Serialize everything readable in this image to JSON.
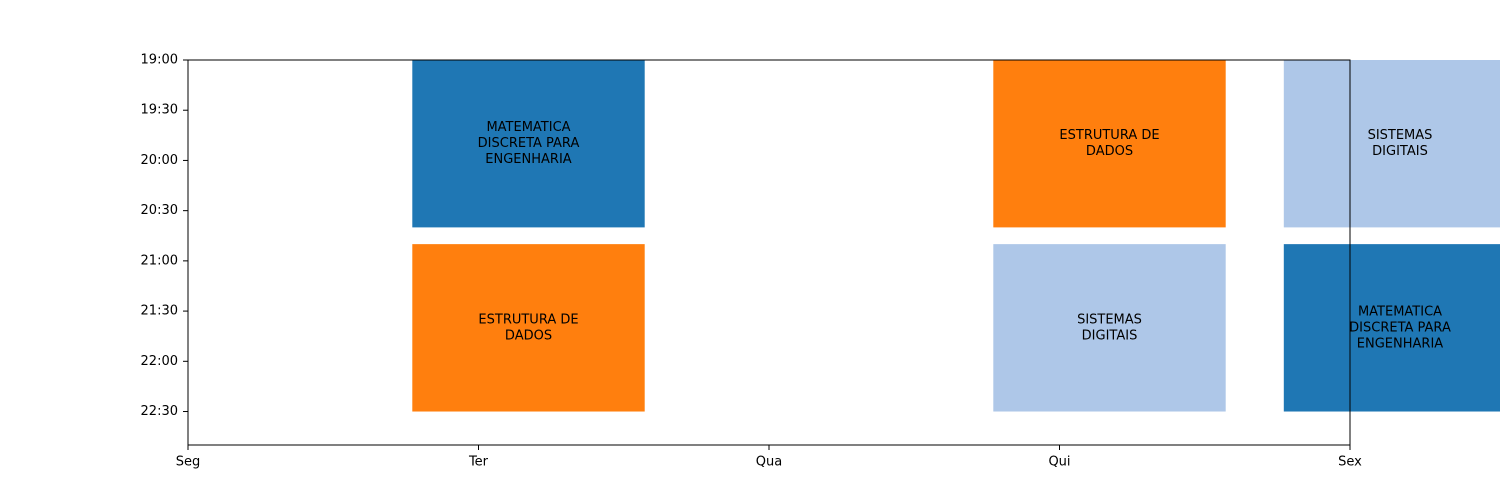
{
  "chart_data": {
    "type": "timetable",
    "title": "",
    "xlabel": "",
    "ylabel": "",
    "days": [
      "Seg",
      "Ter",
      "Qua",
      "Qui",
      "Sex"
    ],
    "time_ticks": [
      "19:00",
      "19:30",
      "20:00",
      "20:30",
      "21:00",
      "21:30",
      "22:00",
      "22:30"
    ],
    "time_range": [
      "19:00",
      "22:50"
    ],
    "grid": false,
    "colors": {
      "MATEMATICA DISCRETA PARA ENGENHARIA": "#1f77b4",
      "ESTRUTURA DE DADOS": "#ff7f0e",
      "SISTEMAS DIGITAIS": "#aec7e8"
    },
    "blocks": [
      {
        "day": "Ter",
        "start": "19:00",
        "end": "20:40",
        "lines": [
          "MATEMATICA",
          "DISCRETA PARA",
          "ENGENHARIA"
        ],
        "color": "#1f77b4"
      },
      {
        "day": "Ter",
        "start": "20:50",
        "end": "22:30",
        "lines": [
          "ESTRUTURA DE",
          "DADOS"
        ],
        "color": "#ff7f0e"
      },
      {
        "day": "Qui",
        "start": "19:00",
        "end": "20:40",
        "lines": [
          "ESTRUTURA DE",
          "DADOS"
        ],
        "color": "#ff7f0e"
      },
      {
        "day": "Qui",
        "start": "20:50",
        "end": "22:30",
        "lines": [
          "SISTEMAS",
          "DIGITAIS"
        ],
        "color": "#aec7e8"
      },
      {
        "day": "Sex",
        "start": "19:00",
        "end": "20:40",
        "lines": [
          "SISTEMAS",
          "DIGITAIS"
        ],
        "color": "#aec7e8"
      },
      {
        "day": "Sex",
        "start": "20:50",
        "end": "22:30",
        "lines": [
          "MATEMATICA",
          "DISCRETA PARA",
          "ENGENHARIA"
        ],
        "color": "#1f77b4"
      }
    ]
  }
}
